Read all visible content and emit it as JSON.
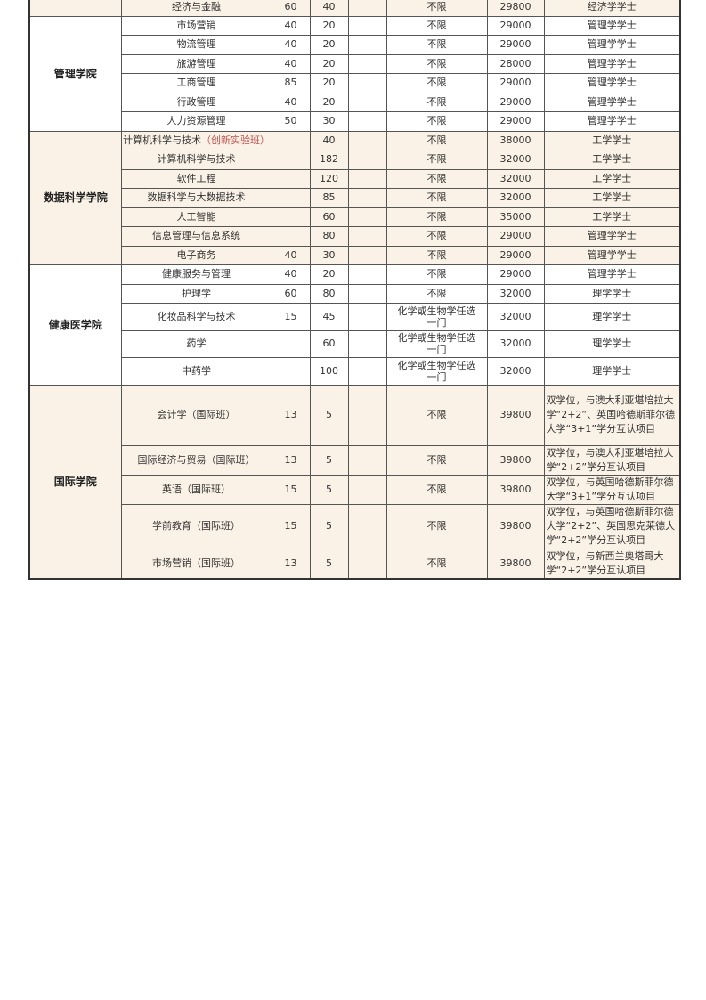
{
  "groups": [
    {
      "college": "",
      "bg": "#faf2e6",
      "rows": [
        {
          "major": "经济与金融",
          "c3": "60",
          "c4": "40",
          "subject": "不限",
          "tuition": "29800",
          "degree": "经济学学士",
          "h": 20
        }
      ]
    },
    {
      "college": "管理学院",
      "bg": "#ffffff",
      "rows": [
        {
          "major": "市场营销",
          "c3": "40",
          "c4": "20",
          "subject": "不限",
          "tuition": "29000",
          "degree": "管理学学士",
          "h": 21
        },
        {
          "major": "物流管理",
          "c3": "40",
          "c4": "20",
          "subject": "不限",
          "tuition": "29000",
          "degree": "管理学学士",
          "h": 22
        },
        {
          "major": "旅游管理",
          "c3": "40",
          "c4": "20",
          "subject": "不限",
          "tuition": "28000",
          "degree": "管理学学士",
          "h": 21
        },
        {
          "major": "工商管理",
          "c3": "85",
          "c4": "20",
          "subject": "不限",
          "tuition": "29000",
          "degree": "管理学学士",
          "h": 22
        },
        {
          "major": "行政管理",
          "c3": "40",
          "c4": "20",
          "subject": "不限",
          "tuition": "29000",
          "degree": "管理学学士",
          "h": 21
        },
        {
          "major": "人力资源管理",
          "c3": "50",
          "c4": "30",
          "subject": "不限",
          "tuition": "29000",
          "degree": "管理学学士",
          "h": 22
        }
      ]
    },
    {
      "college": "数据科学学院",
      "bg": "#faf2e6",
      "rows": [
        {
          "major": "计算机科学与技术",
          "major_note": "（创新实验班）",
          "c3": "",
          "c4": "40",
          "subject": "不限",
          "tuition": "38000",
          "degree": "工学学士",
          "h": 21
        },
        {
          "major": "计算机科学与技术",
          "c3": "",
          "c4": "182",
          "subject": "不限",
          "tuition": "32000",
          "degree": "工学学士",
          "h": 22
        },
        {
          "major": "软件工程",
          "c3": "",
          "c4": "120",
          "subject": "不限",
          "tuition": "32000",
          "degree": "工学学士",
          "h": 21
        },
        {
          "major": "数据科学与大数据技术",
          "c3": "",
          "c4": "85",
          "subject": "不限",
          "tuition": "32000",
          "degree": "工学学士",
          "h": 22
        },
        {
          "major": "人工智能",
          "c3": "",
          "c4": "60",
          "subject": "不限",
          "tuition": "35000",
          "degree": "工学学士",
          "h": 21
        },
        {
          "major": "信息管理与信息系统",
          "c3": "",
          "c4": "80",
          "subject": "不限",
          "tuition": "29000",
          "degree": "管理学学士",
          "h": 22
        },
        {
          "major": "电子商务",
          "c3": "40",
          "c4": "30",
          "subject": "不限",
          "tuition": "29000",
          "degree": "管理学学士",
          "h": 21
        }
      ]
    },
    {
      "college": "健康医学院",
      "bg": "#ffffff",
      "rows": [
        {
          "major": "健康服务与管理",
          "c3": "40",
          "c4": "20",
          "subject": "不限",
          "tuition": "29000",
          "degree": "管理学学士",
          "h": 22
        },
        {
          "major": "护理学",
          "c3": "60",
          "c4": "80",
          "subject": "不限",
          "tuition": "32000",
          "degree": "理学学士",
          "h": 21
        },
        {
          "major": "化妆品科学与技术",
          "c3": "15",
          "c4": "45",
          "subject": "化学或生物学任选一门",
          "tuition": "32000",
          "degree": "理学学士",
          "h": 31
        },
        {
          "major": "药学",
          "c3": "",
          "c4": "60",
          "subject": "化学或生物学任选一门",
          "tuition": "32000",
          "degree": "理学学士",
          "h": 30
        },
        {
          "major": "中药学",
          "c3": "",
          "c4": "100",
          "subject": "化学或生物学任选一门",
          "tuition": "32000",
          "degree": "理学学士",
          "h": 31
        }
      ]
    },
    {
      "college": "国际学院",
      "bg": "#faf2e6",
      "rows": [
        {
          "major": "会计学（国际班）",
          "c3": "13",
          "c4": "5",
          "subject": "不限",
          "tuition": "39800",
          "degree": "双学位，与澳大利亚堪培拉大学“2+2”、英国哈德斯菲尔德大学“3+1”学分互认项目",
          "h": 68
        },
        {
          "major": "国际经济与贸易（国际班）",
          "c3": "13",
          "c4": "5",
          "subject": "不限",
          "tuition": "39800",
          "degree": "双学位，与澳大利亚堪培拉大学“2+2”学分互认项目",
          "h": 33
        },
        {
          "major": "英语（国际班）",
          "c3": "15",
          "c4": "5",
          "subject": "不限",
          "tuition": "39800",
          "degree": "双学位，与英国哈德斯菲尔德大学“3+1”学分互认项目",
          "h": 33
        },
        {
          "major": "学前教育（国际班）",
          "c3": "15",
          "c4": "5",
          "subject": "不限",
          "tuition": "39800",
          "degree": "双学位，与英国哈德斯菲尔德大学“2+2”、英国思克莱德大学“2+2”学分互认项目",
          "h": 50
        },
        {
          "major": "市场营销（国际班）",
          "c3": "13",
          "c4": "5",
          "subject": "不限",
          "tuition": "39800",
          "degree": "双学位，与新西兰奥塔哥大学“2+2”学分互认项目",
          "h": 33
        }
      ]
    }
  ]
}
